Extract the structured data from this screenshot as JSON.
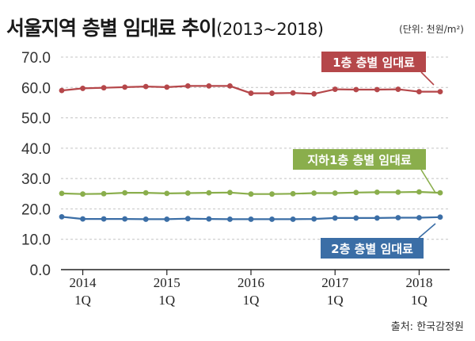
{
  "title": {
    "main": "서울지역 층별 임대료 추이",
    "sub": "(2013~2018)"
  },
  "unit": "(단위: 천원/m²)",
  "source": "출처: 한국감정원",
  "chart_data": {
    "type": "line",
    "title": "서울지역 층별 임대료 추이(2013~2018)",
    "ylim": [
      0,
      70
    ],
    "y_ticks": [
      "0.0",
      "10.0",
      "20.0",
      "30.0",
      "40.0",
      "50.0",
      "60.0",
      "70.0"
    ],
    "y_tick_values": [
      0,
      10,
      20,
      30,
      40,
      50,
      60,
      70
    ],
    "x_labels": [
      {
        "year": "2014",
        "quarter": "1Q",
        "index": 1
      },
      {
        "year": "2015",
        "quarter": "1Q",
        "index": 5
      },
      {
        "year": "2016",
        "quarter": "1Q",
        "index": 9
      },
      {
        "year": "2017",
        "quarter": "1Q",
        "index": 13
      },
      {
        "year": "2018",
        "quarter": "1Q",
        "index": 17
      }
    ],
    "num_points": 19,
    "grid": true,
    "series": [
      {
        "name": "1층 층별 임대료",
        "color": "#b5474a",
        "values": [
          59.0,
          59.7,
          59.9,
          60.1,
          60.3,
          60.1,
          60.5,
          60.5,
          60.5,
          58.1,
          58.1,
          58.2,
          57.9,
          59.4,
          59.3,
          59.3,
          59.4,
          58.6,
          58.6
        ]
      },
      {
        "name": "지하1층 층별 임대료",
        "color": "#8aae4c",
        "values": [
          25.1,
          24.9,
          25.0,
          25.3,
          25.3,
          25.1,
          25.2,
          25.3,
          25.4,
          24.9,
          24.9,
          25.0,
          25.2,
          25.2,
          25.4,
          25.5,
          25.5,
          25.6,
          25.3
        ]
      },
      {
        "name": "2층 층별 임대료",
        "color": "#3b6ea6",
        "values": [
          17.4,
          16.7,
          16.7,
          16.7,
          16.6,
          16.6,
          16.8,
          16.7,
          16.6,
          16.6,
          16.6,
          16.6,
          16.7,
          17.0,
          17.0,
          17.0,
          17.1,
          17.1,
          17.3
        ]
      }
    ]
  }
}
